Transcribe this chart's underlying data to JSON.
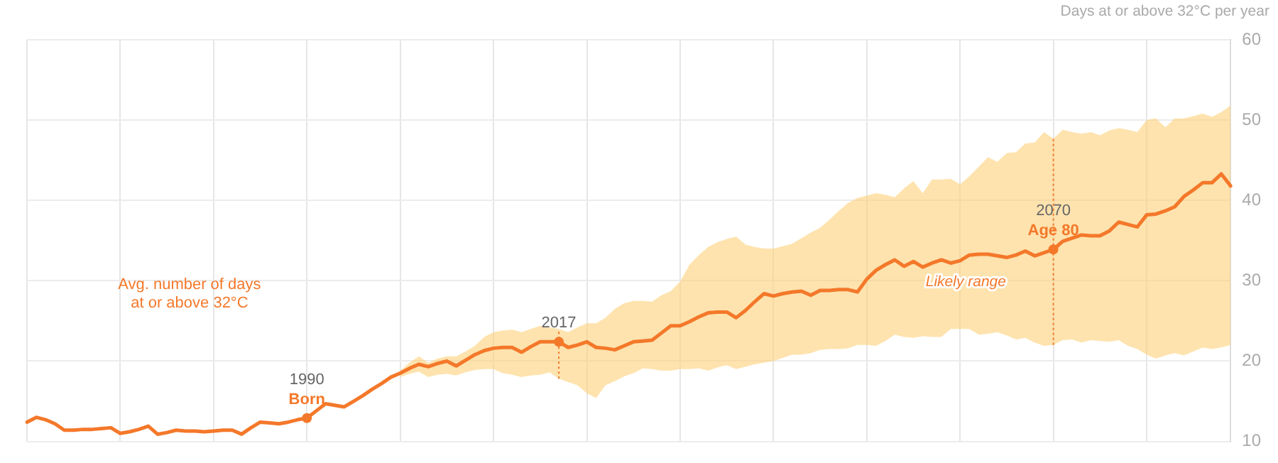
{
  "chart_data": {
    "type": "line",
    "ylabel": "Days at or above 32°C per year",
    "categories": [
      null,
      null,
      null,
      null,
      null,
      null,
      null,
      null,
      null,
      null,
      null,
      null,
      null,
      null,
      null,
      null,
      null,
      null,
      null,
      null,
      null,
      null,
      null,
      null,
      null,
      null,
      null,
      null,
      null,
      null,
      null,
      null,
      null,
      null,
      null,
      null,
      null,
      null,
      null,
      null,
      null,
      null,
      null,
      null,
      null,
      null,
      null,
      null,
      null,
      null,
      null,
      null,
      null,
      null,
      null,
      null,
      null,
      null,
      null,
      null,
      null,
      null,
      null,
      null,
      null,
      null,
      null,
      null,
      null,
      null,
      null,
      null,
      null,
      null,
      null,
      null,
      null,
      null,
      null,
      null,
      null,
      null,
      null,
      null,
      null,
      null,
      null,
      null,
      null,
      null,
      null,
      null,
      null,
      null,
      null,
      null,
      null,
      null,
      null,
      null,
      null,
      null,
      null,
      null,
      null,
      null,
      null,
      null,
      null,
      null,
      null,
      null,
      null,
      null,
      null,
      null,
      null,
      null,
      null,
      null,
      null,
      null,
      null,
      null,
      null,
      null,
      null,
      null,
      null,
      null
    ],
    "ylim": [
      10,
      60
    ],
    "yticks": [
      10,
      20,
      30,
      40,
      50,
      60
    ],
    "tick_labels": "y",
    "grid": true,
    "legend": false,
    "marker": "none",
    "line_style": "solid",
    "series": [
      {
        "name": "Avg. number of days at or above 32°C",
        "color": "#f4782a",
        "values": [
          12.4,
          13.0,
          12.7,
          12.2,
          11.4,
          11.4,
          11.5,
          11.5,
          11.6,
          11.7,
          11.0,
          11.2,
          11.5,
          11.9,
          10.9,
          11.1,
          11.4,
          11.3,
          11.3,
          11.2,
          11.3,
          11.4,
          11.4,
          10.9,
          11.7,
          12.4,
          12.3,
          12.2,
          12.4,
          12.7,
          12.9,
          13.8,
          14.7,
          14.5,
          14.3,
          15.0,
          15.7,
          16.5,
          17.2,
          18.0,
          18.5,
          19.1,
          19.6,
          19.3,
          19.7,
          20.0,
          19.4,
          20.1,
          20.8,
          21.3,
          21.6,
          21.7,
          21.7,
          21.1,
          21.8,
          22.4,
          22.4,
          22.4,
          21.7,
          22.0,
          22.4,
          21.7,
          21.6,
          21.4,
          21.9,
          22.4,
          22.5,
          22.6,
          23.5,
          24.4,
          24.4,
          24.9,
          25.5,
          26.0,
          26.1,
          26.1,
          25.4,
          26.3,
          27.4,
          28.4,
          28.1,
          28.4,
          28.6,
          28.7,
          28.2,
          28.8,
          28.8,
          28.9,
          28.9,
          28.6,
          30.2,
          31.3,
          32.0,
          32.6,
          31.8,
          32.4,
          31.7,
          32.2,
          32.6,
          32.2,
          32.5,
          33.2,
          33.3,
          33.3,
          33.1,
          32.9,
          33.2,
          33.7,
          33.1,
          33.5,
          33.9,
          34.9,
          35.3,
          35.7,
          35.6,
          35.6,
          36.2,
          37.3,
          37.0,
          36.7,
          38.2,
          38.3,
          38.7,
          39.2,
          40.5,
          41.3,
          42.2,
          42.2,
          43.3,
          41.8
        ],
        "lower": [
          null,
          null,
          null,
          null,
          null,
          null,
          null,
          null,
          null,
          null,
          null,
          null,
          null,
          null,
          null,
          null,
          null,
          null,
          null,
          null,
          null,
          null,
          null,
          null,
          null,
          null,
          null,
          null,
          null,
          null,
          null,
          null,
          null,
          null,
          null,
          null,
          null,
          null,
          null,
          null,
          18.0,
          18.4,
          18.7,
          18.0,
          18.3,
          18.4,
          18.2,
          18.6,
          18.9,
          19.0,
          19.0,
          18.5,
          18.3,
          18.0,
          18.2,
          18.3,
          18.6,
          17.8,
          17.4,
          17.0,
          16.0,
          15.4,
          17.0,
          17.5,
          18.1,
          18.5,
          19.1,
          19.0,
          18.8,
          18.8,
          19.0,
          19.0,
          19.1,
          18.8,
          19.2,
          19.5,
          19.0,
          19.3,
          19.6,
          19.8,
          20.0,
          20.4,
          20.8,
          20.8,
          21.0,
          21.4,
          21.5,
          21.5,
          21.6,
          22.0,
          22.0,
          21.9,
          22.5,
          23.3,
          23.0,
          22.9,
          23.1,
          23.0,
          23.0,
          24.0,
          24.0,
          24.0,
          23.3,
          23.4,
          23.6,
          23.2,
          22.7,
          22.9,
          22.3,
          21.9,
          22.0,
          22.6,
          22.7,
          22.3,
          22.6,
          22.5,
          22.4,
          22.6,
          21.9,
          21.5,
          20.8,
          20.3,
          20.7,
          21.0,
          20.7,
          21.2,
          21.7,
          21.5,
          21.7,
          22.0
        ],
        "upper": [
          null,
          null,
          null,
          null,
          null,
          null,
          null,
          null,
          null,
          null,
          null,
          null,
          null,
          null,
          null,
          null,
          null,
          null,
          null,
          null,
          null,
          null,
          null,
          null,
          null,
          null,
          null,
          null,
          null,
          null,
          null,
          null,
          null,
          null,
          null,
          null,
          null,
          null,
          null,
          null,
          18.8,
          19.8,
          20.6,
          19.8,
          20.3,
          20.6,
          20.6,
          21.2,
          21.9,
          23.0,
          23.6,
          23.8,
          23.9,
          23.6,
          24.0,
          24.4,
          24.2,
          24.0,
          23.6,
          24.2,
          24.7,
          24.7,
          25.4,
          26.5,
          27.2,
          27.5,
          27.5,
          27.4,
          28.2,
          28.7,
          29.9,
          32.0,
          33.2,
          34.2,
          34.8,
          35.2,
          35.5,
          34.5,
          34.2,
          34.0,
          34.0,
          34.3,
          34.6,
          35.3,
          36.0,
          36.6,
          37.6,
          38.7,
          39.7,
          40.3,
          40.6,
          40.9,
          40.7,
          40.4,
          41.5,
          42.4,
          40.9,
          42.6,
          42.6,
          42.7,
          42.0,
          43.0,
          44.2,
          45.4,
          44.8,
          45.9,
          46.0,
          47.1,
          47.2,
          48.5,
          47.7,
          48.8,
          48.5,
          48.3,
          48.5,
          48.1,
          48.7,
          49.0,
          48.8,
          48.5,
          50.0,
          50.2,
          49.1,
          50.2,
          50.2,
          50.5,
          50.8,
          50.4,
          51.0,
          51.8
        ]
      },
      {
        "type": "scatter",
        "marker": "circle",
        "color": "#f4782a",
        "values": [
          null,
          null,
          null,
          null,
          null,
          null,
          null,
          null,
          null,
          null,
          null,
          null,
          null,
          null,
          null,
          null,
          null,
          null,
          null,
          null,
          null,
          null,
          null,
          null,
          null,
          null,
          null,
          null,
          null,
          null,
          12.9,
          null,
          null,
          null,
          null,
          null,
          null,
          null,
          null,
          null,
          null,
          null,
          null,
          null,
          null,
          null,
          null,
          null,
          null,
          null,
          null,
          null,
          null,
          null,
          null,
          null,
          null,
          22.4,
          null,
          null,
          null,
          null,
          null,
          null,
          null,
          null,
          null,
          null,
          null,
          null,
          null,
          null,
          null,
          null,
          null,
          null,
          null,
          null,
          null,
          null,
          null,
          null,
          null,
          null,
          null,
          null,
          null,
          null,
          null,
          null,
          null,
          null,
          null,
          null,
          null,
          null,
          null,
          null,
          null,
          null,
          null,
          null,
          null,
          null,
          null,
          null,
          null,
          null,
          null,
          null,
          33.9,
          null,
          null,
          null,
          null,
          null,
          null,
          null,
          null,
          null,
          null,
          null,
          null,
          null,
          null,
          null,
          null,
          null,
          null,
          null
        ]
      }
    ],
    "annotations": [
      {
        "text": "1990",
        "y": 12.9
      },
      {
        "text": "Born",
        "y": 12.9
      },
      {
        "text": "2017",
        "y": 22.4
      },
      {
        "text": "2070",
        "y": 33.9
      },
      {
        "text": "Age 80",
        "y": 33.9
      },
      "Likely range"
    ]
  }
}
